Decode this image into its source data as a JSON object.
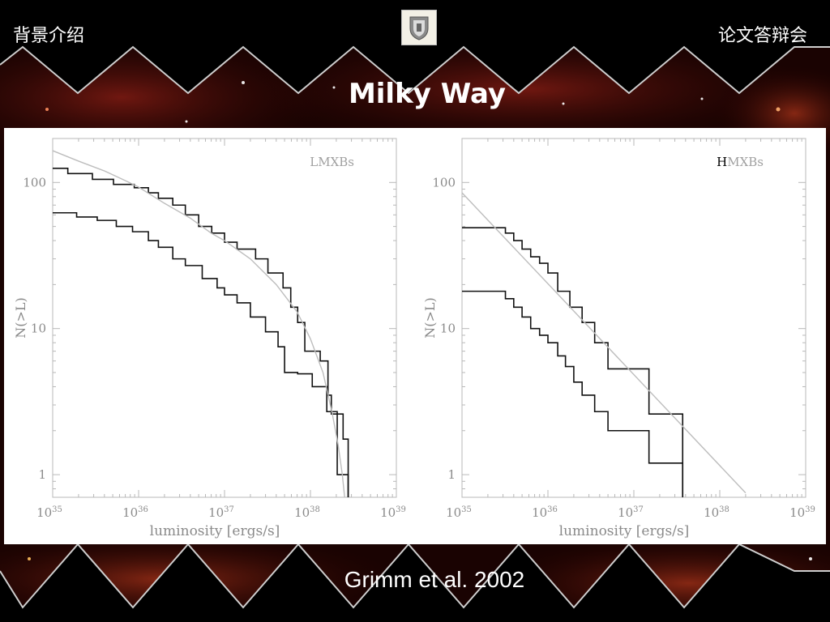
{
  "header": {
    "left": "背景介绍",
    "right": "论文答辩会",
    "logo_icon": "university-crest-icon"
  },
  "slide": {
    "title": "Milky Way",
    "citation": "Grimm et al. 2002"
  },
  "chart_data": [
    {
      "type": "line",
      "label": "LMXBs",
      "xlabel": "luminosity [ergs/s]",
      "ylabel": "N(>L)",
      "xscale": "log",
      "yscale": "log",
      "xlim": [
        1e+35,
        1e+39
      ],
      "ylim": [
        0.7,
        200
      ],
      "xticks": [
        {
          "base": "10",
          "exp": "35"
        },
        {
          "base": "10",
          "exp": "36"
        },
        {
          "base": "10",
          "exp": "37"
        },
        {
          "base": "10",
          "exp": "38"
        },
        {
          "base": "10",
          "exp": "39"
        }
      ],
      "yticks": [
        "1",
        "10",
        "100"
      ],
      "series": [
        {
          "style": "step-black",
          "x": [
            1e+35,
            1.5e+35,
            2.9e+35,
            5.1e+35,
            8.9e+35,
            1.3e+36,
            1.7e+36,
            2.5e+36,
            3.5e+36,
            5e+36,
            7.1e+36,
            1e+37,
            1.4e+37,
            2.3e+37,
            3.2e+37,
            4.8e+37,
            5.9e+37,
            7.1e+37,
            8.6e+37,
            1.3e+38,
            1.6e+38,
            1.75e+38,
            2.4e+38,
            2.75e+38,
            2.75e+38
          ],
          "y": [
            125,
            115,
            105,
            97,
            92,
            85,
            78,
            70,
            60,
            50,
            45,
            39,
            35,
            30,
            24,
            19,
            14,
            11,
            7,
            6,
            3.5,
            2.6,
            1.75,
            1.2,
            0.7
          ]
        },
        {
          "style": "step-black",
          "x": [
            1e+35,
            1.9e+35,
            3.3e+35,
            5.5e+35,
            8.5e+35,
            1.3e+36,
            1.7e+36,
            2.5e+36,
            3.5e+36,
            5.5e+36,
            8.2e+36,
            1e+37,
            1.4e+37,
            2e+37,
            3e+37,
            4.2e+37,
            5e+37,
            7.1e+37,
            1.05e+38,
            1.55e+38,
            2.05e+38,
            2.75e+38,
            2.75e+38
          ],
          "y": [
            62,
            58,
            55,
            50,
            46,
            40,
            36,
            30,
            27,
            22,
            19,
            17,
            15,
            12,
            9.5,
            7.5,
            5,
            4.9,
            4,
            2.7,
            1,
            0.8,
            0.7
          ]
        },
        {
          "style": "smooth-gray",
          "x": [
            1e+35,
            2e+35,
            4e+35,
            7e+35,
            1e+36,
            2e+36,
            4e+36,
            7e+36,
            1e+37,
            2e+37,
            4e+37,
            7e+37,
            1e+38,
            1.4e+38,
            1.8e+38,
            2.1e+38,
            2.35e+38,
            2.5e+38
          ],
          "y": [
            165,
            140,
            120,
            103,
            93,
            72,
            57,
            45,
            40,
            30,
            20,
            13,
            8.5,
            5,
            2.6,
            1.6,
            1,
            0.7
          ]
        }
      ]
    },
    {
      "type": "line",
      "label": "HMXBs",
      "label_prefix": "H",
      "label_rest": "MXBs",
      "xlabel": "luminosity [ergs/s]",
      "ylabel": "N(>L)",
      "xscale": "log",
      "yscale": "log",
      "xlim": [
        1e+35,
        1e+39
      ],
      "ylim": [
        0.7,
        200
      ],
      "xticks": [
        {
          "base": "10",
          "exp": "35"
        },
        {
          "base": "10",
          "exp": "36"
        },
        {
          "base": "10",
          "exp": "37"
        },
        {
          "base": "10",
          "exp": "38"
        },
        {
          "base": "10",
          "exp": "39"
        }
      ],
      "yticks": [
        "1",
        "10",
        "100"
      ],
      "series": [
        {
          "style": "step-black",
          "x": [
            1e+35,
            3.2e+35,
            4e+35,
            5e+35,
            6.3e+35,
            8e+35,
            1e+36,
            1.3e+36,
            1.8e+36,
            2.5e+36,
            3.5e+36,
            5e+36,
            1.5e+37,
            3.7e+37,
            3.7e+37
          ],
          "y": [
            49,
            45,
            40,
            35,
            31,
            28,
            24,
            18,
            14,
            11,
            8,
            5.3,
            2.6,
            1,
            0.7
          ]
        },
        {
          "style": "step-black",
          "x": [
            1e+35,
            3.2e+35,
            4e+35,
            5e+35,
            6.3e+35,
            8e+35,
            1e+36,
            1.3e+36,
            1.6e+36,
            2e+36,
            2.5e+36,
            3.5e+36,
            5e+36,
            1.5e+37,
            3.7e+37,
            3.7e+37
          ],
          "y": [
            18,
            16,
            14,
            12,
            10,
            9,
            8,
            6.5,
            5.5,
            4.3,
            3.5,
            2.7,
            2,
            1.2,
            1,
            0.7
          ]
        },
        {
          "style": "smooth-gray",
          "x": [
            1e+35,
            2e+38
          ],
          "y": [
            85,
            0.75
          ]
        }
      ]
    }
  ]
}
